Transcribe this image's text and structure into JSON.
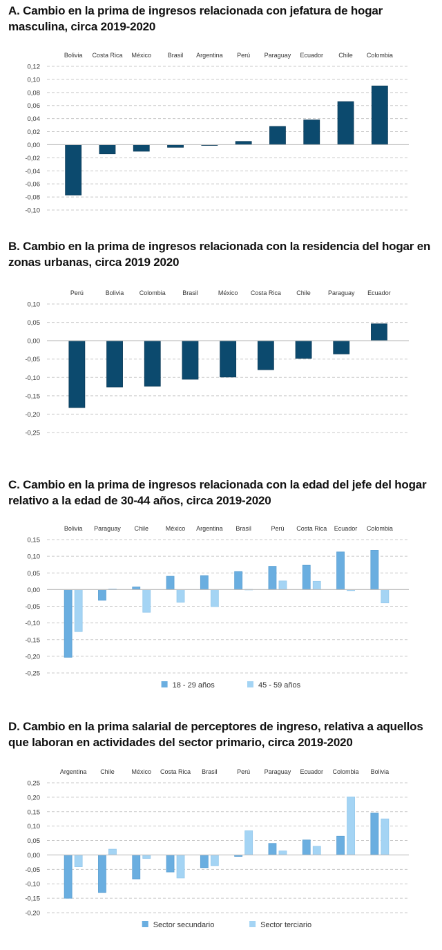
{
  "colors": {
    "dark_bar": "#0c4a6e",
    "series_primary": "#6aaee0",
    "series_secondary": "#a4d4f4",
    "grid": "#c8c8c8",
    "zero_line": "#bdbdbd"
  },
  "chart_data": [
    {
      "id": "A",
      "type": "bar",
      "title": "A. Cambio en la prima de ingresos relacionada con jefatura de hogar masculina, circa 2019-2020",
      "xlabel": "",
      "ylabel": "",
      "categories": [
        "Bolivia",
        "Costa Rica",
        "México",
        "Brasil",
        "Argentina",
        "Perú",
        "Paraguay",
        "Ecuador",
        "Chile",
        "Colombia"
      ],
      "series": [
        {
          "name": "",
          "values": [
            -0.077,
            -0.014,
            -0.01,
            -0.004,
            -0.001,
            0.005,
            0.028,
            0.038,
            0.066,
            0.09
          ]
        }
      ],
      "ylim": [
        -0.1,
        0.12
      ],
      "yticks": [
        0.12,
        0.1,
        0.08,
        0.06,
        0.04,
        0.02,
        0.0,
        -0.02,
        -0.04,
        -0.06,
        -0.08,
        -0.1
      ],
      "ytick_labels": [
        "0,12",
        "0,10",
        "0,08",
        "0,06",
        "0,04",
        "0,02",
        "0,00",
        "-0,02",
        "-0,04",
        "-0,06",
        "-0,08",
        "-0,10"
      ],
      "category_labels_position": "top",
      "grid": true,
      "legend": null
    },
    {
      "id": "B",
      "type": "bar",
      "title": "B. Cambio en la prima de ingresos relacionada con la residencia del hogar en zonas urbanas, circa 2019 2020",
      "xlabel": "",
      "ylabel": "",
      "categories": [
        "Perú",
        "Bolivia",
        "Colombia",
        "Brasil",
        "México",
        "Costa Rica",
        "Chile",
        "Paraguay",
        "Ecuador"
      ],
      "series": [
        {
          "name": "",
          "values": [
            -0.182,
            -0.126,
            -0.124,
            -0.105,
            -0.099,
            -0.079,
            -0.048,
            -0.036,
            0.046
          ]
        }
      ],
      "ylim": [
        -0.25,
        0.1
      ],
      "yticks": [
        0.1,
        0.05,
        0.0,
        -0.05,
        -0.1,
        -0.15,
        -0.2,
        -0.25
      ],
      "ytick_labels": [
        "0,10",
        "0,05",
        "0,00",
        "-0,05",
        "-0,10",
        "-0,15",
        "-0,20",
        "-0,25"
      ],
      "category_labels_position": "top",
      "grid": true,
      "legend": null
    },
    {
      "id": "C",
      "type": "bar",
      "title": "C. Cambio en la prima de ingresos relacionada con la edad del jefe del hogar relativo a la edad de 30-44 años, circa 2019-2020",
      "xlabel": "",
      "ylabel": "",
      "categories": [
        "Bolivia",
        "Paraguay",
        "Chile",
        "México",
        "Argentina",
        "Brasil",
        "Perú",
        "Costa Rica",
        "Ecuador",
        "Colombia"
      ],
      "series": [
        {
          "name": "18 - 29 años",
          "values": [
            -0.203,
            -0.032,
            0.008,
            0.04,
            0.042,
            0.054,
            0.07,
            0.073,
            0.113,
            0.118
          ]
        },
        {
          "name": "45 - 59 años",
          "values": [
            -0.126,
            0.002,
            -0.068,
            -0.038,
            -0.051,
            0.001,
            0.026,
            0.025,
            -0.003,
            -0.04
          ]
        }
      ],
      "ylim": [
        -0.25,
        0.15
      ],
      "yticks": [
        0.15,
        0.1,
        0.05,
        0.0,
        -0.05,
        -0.1,
        -0.15,
        -0.2,
        -0.25
      ],
      "ytick_labels": [
        "0,15",
        "0,10",
        "0,05",
        "0,00",
        "-0,05",
        "-0,10",
        "-0,15",
        "-0,20",
        "-0,25"
      ],
      "category_labels_position": "top",
      "grid": true,
      "legend": "bottom-center"
    },
    {
      "id": "D",
      "type": "bar",
      "title": "D. Cambio en la prima salarial de perceptores de ingreso, relativa a aquellos que laboran en actividades del sector primario, circa 2019-2020",
      "xlabel": "",
      "ylabel": "",
      "categories": [
        "Argentina",
        "Chile",
        "México",
        "Costa Rica",
        "Brasil",
        "Perú",
        "Paraguay",
        "Ecuador",
        "Colombia",
        "Bolivia"
      ],
      "series": [
        {
          "name": "Sector secundario",
          "values": [
            -0.15,
            -0.13,
            -0.083,
            -0.059,
            -0.044,
            -0.005,
            0.04,
            0.052,
            0.065,
            0.145
          ]
        },
        {
          "name": "Sector terciario",
          "values": [
            -0.041,
            0.02,
            -0.012,
            -0.08,
            -0.037,
            0.084,
            0.014,
            0.03,
            0.201,
            0.125
          ]
        }
      ],
      "ylim": [
        -0.2,
        0.25
      ],
      "yticks": [
        0.25,
        0.2,
        0.15,
        0.1,
        0.05,
        0.0,
        -0.05,
        -0.1,
        -0.15,
        -0.2
      ],
      "ytick_labels": [
        "0,25",
        "0,20",
        "0,15",
        "0,10",
        "0,05",
        "0,00",
        "-0,05",
        "-0,10",
        "-0,15",
        "-0,20"
      ],
      "category_labels_position": "top",
      "grid": true,
      "legend": "bottom-center"
    }
  ]
}
